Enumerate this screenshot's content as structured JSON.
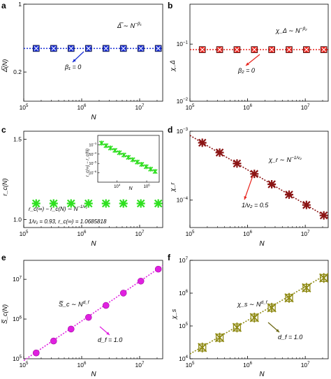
{
  "figure": {
    "panels": [
      {
        "letter": "a",
        "formula": "Δ̅ ∼ N",
        "formula_exp": "−β₁",
        "ylabel": "Δ̅(N)",
        "xlabel": "N",
        "note": "β₁ = 0"
      },
      {
        "letter": "b",
        "formula": "χ_Δ ∼ N",
        "formula_exp": "−β₂",
        "ylabel": "χ_Δ",
        "xlabel": "",
        "note": "β₂ = 0"
      },
      {
        "letter": "c",
        "formula": "r_c(∞) − r_c(N) ∼ N",
        "formula_exp": "−1/ν₁",
        "ylabel": "r_c(N)",
        "xlabel": "N",
        "note": "1/ν₁ = 0.93,  r_c(∞) = 1.0685818",
        "inset_ylabel": "r_c(∞) − r_c(N)",
        "inset_xlabel": "N"
      },
      {
        "letter": "d",
        "formula": "χ_r ∼ N",
        "formula_exp": "−1/ν₂",
        "ylabel": "χ_r",
        "xlabel": "N",
        "note": "1/ν₂ = 0.5"
      },
      {
        "letter": "e",
        "formula": "S̅_c ∼ N",
        "formula_exp": "d_f",
        "ylabel": "S̅_c(N)",
        "xlabel": "N",
        "note": "d_f = 1.0"
      },
      {
        "letter": "f",
        "formula": "χ_s ∼ N",
        "formula_exp": "d_f",
        "ylabel": "χ_s",
        "xlabel": "N",
        "note": "d_f = 1.0"
      }
    ]
  },
  "chart_data": [
    {
      "panel": "a",
      "type": "scatter",
      "xscale": "log",
      "yscale": "log",
      "xlim": [
        100000,
        25000000
      ],
      "ylim": [
        0.1,
        1
      ],
      "x": [
        163840,
        327680,
        655360,
        1310720,
        2621440,
        5242880,
        10485760,
        20971520
      ],
      "y": [
        0.35,
        0.35,
        0.35,
        0.35,
        0.35,
        0.35,
        0.35,
        0.35
      ],
      "fit": {
        "x": [
          100000,
          25000000
        ],
        "y": [
          0.35,
          0.35
        ]
      },
      "xticks": [
        {
          "base": "10",
          "exp": "5"
        },
        {
          "base": "10",
          "exp": "6"
        },
        {
          "base": "10",
          "exp": "7"
        }
      ],
      "yticks": [
        "1",
        "0.2"
      ],
      "color": "#1a2fd6"
    },
    {
      "panel": "b",
      "type": "scatter",
      "xscale": "log",
      "yscale": "log",
      "xlim": [
        100000,
        25000000
      ],
      "ylim": [
        0.01,
        0.5
      ],
      "x": [
        163840,
        327680,
        655360,
        1310720,
        2621440,
        5242880,
        10485760,
        20971520
      ],
      "y": [
        0.08,
        0.08,
        0.08,
        0.08,
        0.08,
        0.08,
        0.08,
        0.08
      ],
      "fit": {
        "x": [
          100000,
          25000000
        ],
        "y": [
          0.08,
          0.08
        ]
      },
      "xticks": [
        {
          "base": "10",
          "exp": "5"
        },
        {
          "base": "10",
          "exp": "6"
        },
        {
          "base": "10",
          "exp": "7"
        }
      ],
      "yticks": [
        {
          "base": "10",
          "exp": "−1"
        },
        {
          "base": "10",
          "exp": "−2"
        }
      ],
      "color": "#e8231c"
    },
    {
      "panel": "c",
      "type": "scatter",
      "xscale": "log",
      "yscale": "linear",
      "xlim": [
        100000,
        25000000
      ],
      "ylim": [
        0.95,
        1.55
      ],
      "x": [
        163840,
        327680,
        655360,
        1310720,
        2621440,
        5242880,
        10485760,
        20971520
      ],
      "y": [
        1.1,
        1.1,
        1.1,
        1.1,
        1.1,
        1.1,
        1.1,
        1.1
      ],
      "xticks": [
        {
          "base": "10",
          "exp": "5"
        },
        {
          "base": "10",
          "exp": "6"
        },
        {
          "base": "10",
          "exp": "7"
        }
      ],
      "yticks": [
        "1.5",
        "1.0"
      ],
      "color": "#2ee01f",
      "inset": {
        "xscale": "log",
        "yscale": "log",
        "xlim": [
          500,
          7000000
        ],
        "ylim": [
          1e-07,
          0.01
        ],
        "x": [
          900,
          1800,
          3600,
          7200,
          14400,
          28800,
          57600,
          115200,
          230400,
          460800,
          921600,
          1843200,
          3686400
        ],
        "y": [
          0.0015,
          0.0008,
          0.00045,
          0.00025,
          0.00014,
          8e-05,
          4.5e-05,
          2.5e-05,
          1.4e-05,
          8e-06,
          4.5e-06,
          2.5e-06,
          1.4e-06
        ],
        "xticks": [
          {
            "base": "10",
            "exp": "4"
          },
          {
            "base": "10",
            "exp": "6"
          }
        ],
        "yticks": [
          {
            "base": "10",
            "exp": "−3"
          },
          {
            "base": "10",
            "exp": "−4"
          },
          {
            "base": "10",
            "exp": "−5"
          },
          {
            "base": "10",
            "exp": "−6"
          }
        ]
      }
    },
    {
      "panel": "d",
      "type": "scatter",
      "xscale": "log",
      "yscale": "log",
      "xlim": [
        100000,
        25000000
      ],
      "ylim": [
        4e-05,
        0.001
      ],
      "x": [
        163840,
        327680,
        655360,
        1310720,
        2621440,
        5242880,
        10485760,
        20971520
      ],
      "y": [
        0.00068,
        0.00049,
        0.00034,
        0.00024,
        0.00017,
        0.00012,
        8.5e-05,
        6e-05
      ],
      "fit": {
        "x": [
          100000,
          25000000
        ],
        "y": [
          0.00087,
          5.5e-05
        ]
      },
      "xticks": [
        {
          "base": "10",
          "exp": "5"
        },
        {
          "base": "10",
          "exp": "6"
        },
        {
          "base": "10",
          "exp": "7"
        }
      ],
      "yticks": [
        {
          "base": "10",
          "exp": "−3"
        },
        {
          "base": "10",
          "exp": "−4"
        }
      ],
      "color": "#8b1414"
    },
    {
      "panel": "e",
      "type": "scatter",
      "xscale": "log",
      "yscale": "log",
      "xlim": [
        100000,
        25000000
      ],
      "ylim": [
        100000,
        30000000
      ],
      "x": [
        163840,
        327680,
        655360,
        1310720,
        2621440,
        5242880,
        10485760,
        20971520
      ],
      "y": [
        140000,
        280000,
        560000,
        1100000,
        2200000,
        4500000,
        9000000,
        18000000
      ],
      "fit": {
        "x": [
          100000,
          25000000
        ],
        "y": [
          90000,
          22000000
        ]
      },
      "xticks": [
        {
          "base": "10",
          "exp": "5"
        },
        {
          "base": "10",
          "exp": "6"
        },
        {
          "base": "10",
          "exp": "7"
        }
      ],
      "yticks": [
        {
          "base": "10",
          "exp": "7"
        },
        {
          "base": "10",
          "exp": "6"
        },
        {
          "base": "10",
          "exp": "5"
        }
      ],
      "color": "#e020e0"
    },
    {
      "panel": "f",
      "type": "scatter",
      "xscale": "log",
      "yscale": "log",
      "xlim": [
        100000,
        25000000
      ],
      "ylim": [
        10000,
        10000000
      ],
      "x": [
        163840,
        327680,
        655360,
        1310720,
        2621440,
        5242880,
        10485760,
        20971520
      ],
      "y": [
        22000,
        44000,
        90000,
        180000,
        360000,
        720000,
        1450000,
        2900000
      ],
      "fit": {
        "x": [
          100000,
          25000000
        ],
        "y": [
          14000,
          4000000
        ]
      },
      "xticks": [
        {
          "base": "10",
          "exp": "5"
        },
        {
          "base": "10",
          "exp": "6"
        },
        {
          "base": "10",
          "exp": "7"
        }
      ],
      "yticks": [
        {
          "base": "10",
          "exp": "7"
        },
        {
          "base": "10",
          "exp": "6"
        },
        {
          "base": "10",
          "exp": "5"
        },
        {
          "base": "10",
          "exp": "4"
        }
      ],
      "color": "#8f8a14"
    }
  ]
}
